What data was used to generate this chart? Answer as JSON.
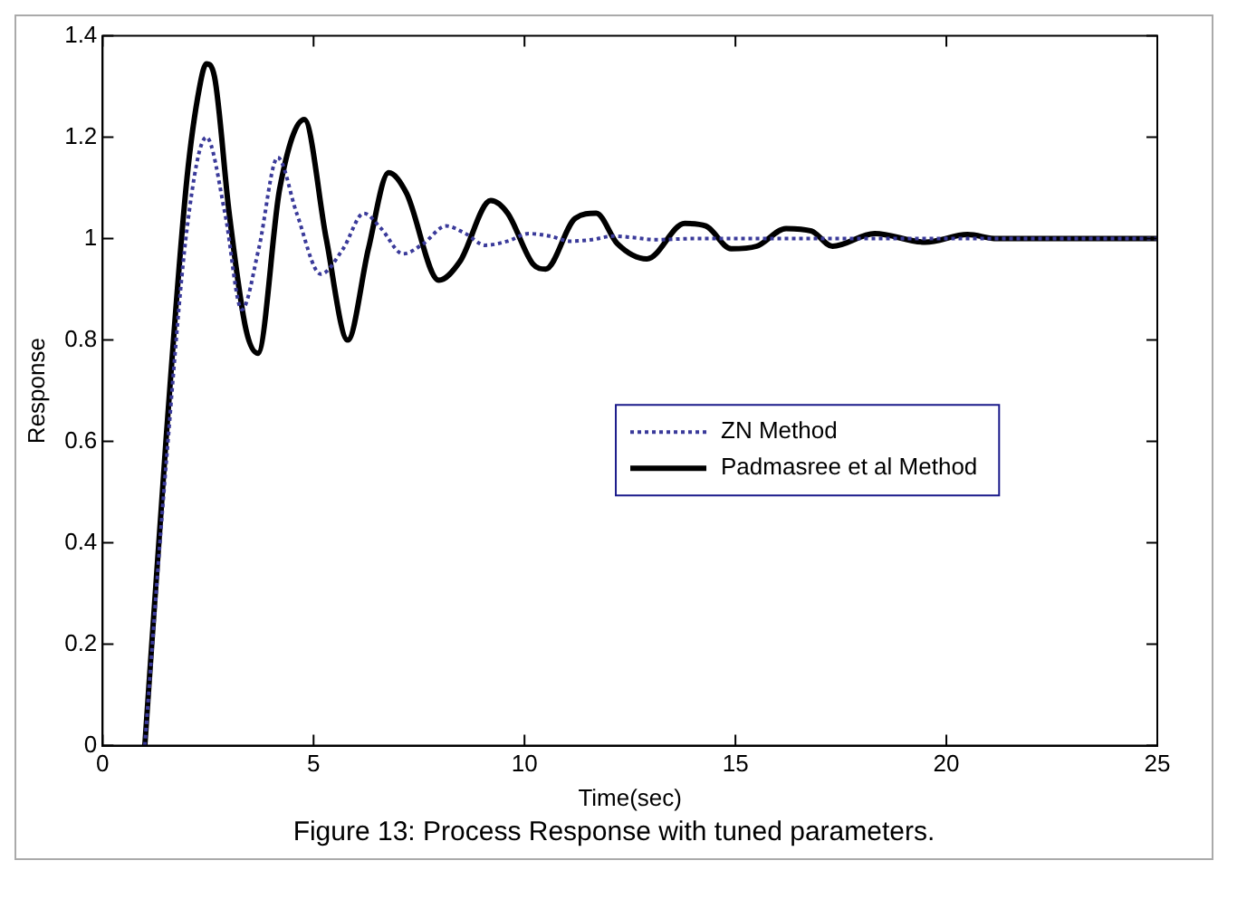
{
  "chart_data": {
    "type": "line",
    "xlabel": "Time(sec)",
    "ylabel": "Response",
    "annotations": [
      "Figure 13: Process Response with tuned parameters."
    ],
    "xlim": [
      0,
      25
    ],
    "xticks": [
      0,
      5,
      10,
      15,
      20,
      25
    ],
    "ylim": [
      0,
      1.4
    ],
    "yticks": [
      0,
      0.2,
      0.4,
      0.6,
      0.8,
      1,
      1.2,
      1.4
    ],
    "grid": false,
    "legend": "right",
    "marker": "none",
    "series": [
      {
        "name": "ZN Method",
        "color": "#3a3a9a",
        "line_style": "dotted",
        "x": [
          1.0,
          1.5,
          2.0,
          2.46,
          2.9,
          3.3,
          3.7,
          4.15,
          4.6,
          5.17,
          5.7,
          6.19,
          6.6,
          7.12,
          7.6,
          8.14,
          8.6,
          9.07,
          9.6,
          10.1,
          10.6,
          11.1,
          11.6,
          12.1,
          12.6,
          13.1,
          14,
          15,
          16,
          17,
          18,
          19,
          20,
          21,
          22,
          23,
          24,
          25
        ],
        "values": [
          0,
          0.55,
          1.02,
          1.2,
          1.05,
          0.86,
          0.98,
          1.16,
          1.05,
          0.93,
          0.98,
          1.05,
          1.02,
          0.97,
          0.99,
          1.025,
          1.01,
          0.987,
          0.995,
          1.01,
          1.005,
          0.995,
          0.998,
          1.005,
          1.002,
          0.998,
          1,
          1,
          1,
          1,
          1,
          1,
          1,
          1,
          1,
          1,
          1,
          1
        ]
      },
      {
        "name": "Padmasree et al Method",
        "color": "#000000",
        "line_style": "solid",
        "x": [
          1.0,
          1.5,
          2.0,
          2.3,
          2.46,
          2.65,
          3.0,
          3.4,
          3.68,
          4.2,
          4.78,
          5.3,
          5.81,
          6.3,
          6.78,
          7.2,
          7.97,
          8.47,
          9.2,
          9.6,
          10.2,
          10.5,
          11.2,
          11.7,
          12.2,
          12.9,
          13.8,
          14.3,
          14.9,
          15.5,
          16.2,
          16.8,
          17.3,
          18.3,
          19.5,
          20.5,
          21.2,
          22,
          25
        ],
        "values": [
          0,
          0.6,
          1.12,
          1.3,
          1.345,
          1.32,
          1.05,
          0.82,
          0.774,
          1.1,
          1.235,
          1.0,
          0.8,
          0.98,
          1.13,
          1.09,
          0.918,
          0.955,
          1.075,
          1.05,
          0.95,
          0.94,
          1.04,
          1.05,
          0.99,
          0.96,
          1.03,
          1.025,
          0.98,
          0.985,
          1.02,
          1.015,
          0.985,
          1.01,
          0.993,
          1.008,
          1.0,
          1.0,
          1.0
        ]
      }
    ]
  }
}
